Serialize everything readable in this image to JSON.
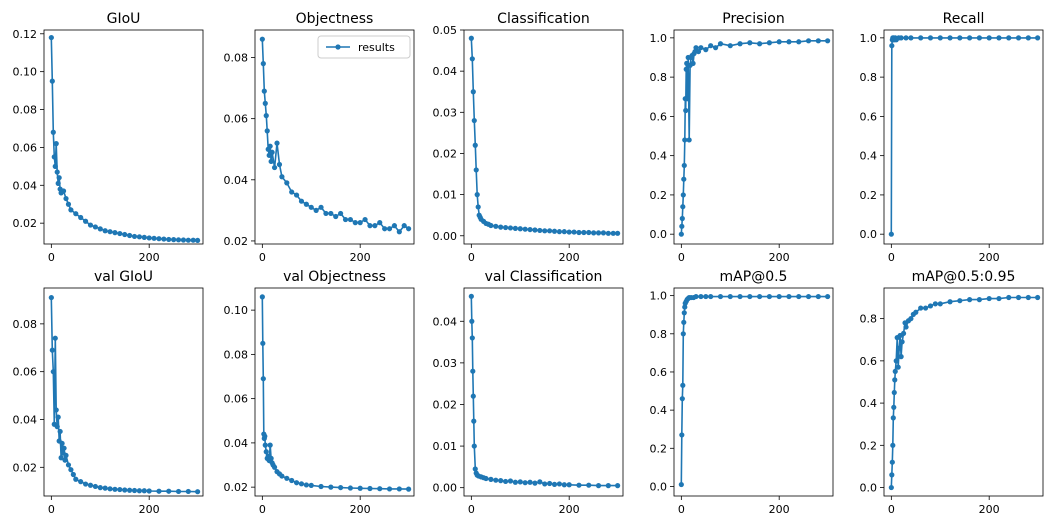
{
  "series_color": "#1f77b4",
  "legend": {
    "label": "results",
    "location": "upper right",
    "panel": 1
  },
  "chart_data": [
    {
      "type": "line",
      "title": "GIoU",
      "xlim": [
        -15,
        310
      ],
      "ylim": [
        0.009,
        0.122
      ],
      "xticks": [
        0,
        200
      ],
      "xtick_labels": [
        "0",
        "200"
      ],
      "yticks": [
        0.02,
        0.04,
        0.06,
        0.08,
        0.1,
        0.12
      ],
      "ytick_labels": [
        "0.02",
        "0.04",
        "0.06",
        "0.08",
        "0.10",
        "0.12"
      ],
      "x": [
        0,
        2,
        4,
        6,
        8,
        10,
        12,
        14,
        16,
        18,
        20,
        25,
        30,
        35,
        40,
        50,
        60,
        70,
        80,
        90,
        100,
        110,
        120,
        130,
        140,
        150,
        160,
        170,
        180,
        190,
        200,
        210,
        220,
        230,
        240,
        250,
        260,
        270,
        280,
        290,
        299
      ],
      "y": [
        0.118,
        0.095,
        0.068,
        0.055,
        0.05,
        0.062,
        0.047,
        0.041,
        0.044,
        0.038,
        0.036,
        0.037,
        0.033,
        0.03,
        0.027,
        0.025,
        0.023,
        0.021,
        0.019,
        0.018,
        0.017,
        0.016,
        0.0155,
        0.015,
        0.0145,
        0.014,
        0.0135,
        0.013,
        0.0128,
        0.0125,
        0.0122,
        0.012,
        0.0118,
        0.0116,
        0.0114,
        0.0113,
        0.0112,
        0.0111,
        0.011,
        0.011,
        0.0109
      ]
    },
    {
      "type": "line",
      "title": "Objectness",
      "xlim": [
        -15,
        310
      ],
      "ylim": [
        0.019,
        0.089
      ],
      "xticks": [
        0,
        200
      ],
      "xtick_labels": [
        "0",
        "200"
      ],
      "yticks": [
        0.02,
        0.04,
        0.06,
        0.08
      ],
      "ytick_labels": [
        "0.02",
        "0.04",
        "0.06",
        "0.08"
      ],
      "x": [
        0,
        2,
        4,
        6,
        8,
        10,
        12,
        14,
        16,
        18,
        20,
        25,
        30,
        35,
        40,
        50,
        60,
        70,
        80,
        90,
        100,
        110,
        120,
        130,
        140,
        150,
        160,
        170,
        180,
        190,
        200,
        210,
        220,
        230,
        240,
        250,
        260,
        270,
        280,
        290,
        299
      ],
      "y": [
        0.086,
        0.078,
        0.069,
        0.065,
        0.061,
        0.056,
        0.05,
        0.048,
        0.051,
        0.046,
        0.049,
        0.044,
        0.052,
        0.045,
        0.041,
        0.039,
        0.036,
        0.035,
        0.033,
        0.032,
        0.031,
        0.03,
        0.031,
        0.029,
        0.029,
        0.028,
        0.029,
        0.027,
        0.027,
        0.026,
        0.026,
        0.027,
        0.025,
        0.025,
        0.026,
        0.024,
        0.024,
        0.025,
        0.023,
        0.025,
        0.024
      ]
    },
    {
      "type": "line",
      "title": "Classification",
      "xlim": [
        -15,
        310
      ],
      "ylim": [
        -0.002,
        0.05
      ],
      "xticks": [
        0,
        200
      ],
      "xtick_labels": [
        "0",
        "200"
      ],
      "yticks": [
        0.0,
        0.01,
        0.02,
        0.03,
        0.04,
        0.05
      ],
      "ytick_labels": [
        "0.00",
        "0.01",
        "0.02",
        "0.03",
        "0.04",
        "0.05"
      ],
      "x": [
        0,
        2,
        4,
        6,
        8,
        10,
        12,
        14,
        16,
        18,
        20,
        25,
        30,
        35,
        40,
        50,
        60,
        70,
        80,
        90,
        100,
        110,
        120,
        130,
        140,
        150,
        160,
        170,
        180,
        190,
        200,
        210,
        220,
        230,
        240,
        250,
        260,
        270,
        280,
        290,
        299
      ],
      "y": [
        0.048,
        0.043,
        0.035,
        0.028,
        0.022,
        0.016,
        0.01,
        0.007,
        0.005,
        0.0045,
        0.004,
        0.0035,
        0.003,
        0.0028,
        0.0025,
        0.0023,
        0.0021,
        0.002,
        0.0019,
        0.0018,
        0.0017,
        0.0016,
        0.0015,
        0.0014,
        0.0013,
        0.0012,
        0.0012,
        0.0011,
        0.001,
        0.001,
        0.0009,
        0.0009,
        0.0008,
        0.0008,
        0.0008,
        0.0007,
        0.0007,
        0.0007,
        0.0006,
        0.0006,
        0.0006
      ]
    },
    {
      "type": "line",
      "title": "Precision",
      "xlim": [
        -15,
        310
      ],
      "ylim": [
        -0.05,
        1.04
      ],
      "xticks": [
        0,
        200
      ],
      "xtick_labels": [
        "0",
        "200"
      ],
      "yticks": [
        0.0,
        0.2,
        0.4,
        0.6,
        0.8,
        1.0
      ],
      "ytick_labels": [
        "0.0",
        "0.2",
        "0.4",
        "0.6",
        "0.8",
        "1.0"
      ],
      "x": [
        0,
        1,
        2,
        3,
        4,
        5,
        6,
        7,
        8,
        9,
        10,
        11,
        12,
        14,
        16,
        18,
        20,
        22,
        24,
        26,
        28,
        30,
        35,
        40,
        50,
        60,
        70,
        80,
        100,
        120,
        140,
        160,
        180,
        200,
        220,
        240,
        260,
        280,
        299
      ],
      "y": [
        0.0,
        0.04,
        0.08,
        0.14,
        0.2,
        0.28,
        0.35,
        0.48,
        0.69,
        0.63,
        0.84,
        0.87,
        0.69,
        0.9,
        0.48,
        0.86,
        0.9,
        0.91,
        0.87,
        0.92,
        0.93,
        0.95,
        0.93,
        0.95,
        0.94,
        0.96,
        0.95,
        0.97,
        0.96,
        0.97,
        0.975,
        0.97,
        0.975,
        0.98,
        0.98,
        0.98,
        0.985,
        0.985,
        0.985
      ]
    },
    {
      "type": "line",
      "title": "Recall",
      "xlim": [
        -15,
        310
      ],
      "ylim": [
        -0.05,
        1.04
      ],
      "xticks": [
        0,
        200
      ],
      "xtick_labels": [
        "0",
        "200"
      ],
      "yticks": [
        0.0,
        0.2,
        0.4,
        0.6,
        0.8,
        1.0
      ],
      "ytick_labels": [
        "0.0",
        "0.2",
        "0.4",
        "0.6",
        "0.8",
        "1.0"
      ],
      "x": [
        0,
        1,
        2,
        3,
        4,
        5,
        6,
        8,
        10,
        15,
        20,
        30,
        40,
        60,
        80,
        100,
        120,
        140,
        160,
        180,
        200,
        220,
        240,
        260,
        280,
        299
      ],
      "y": [
        0.0,
        0.96,
        0.99,
        1.0,
        0.99,
        1.0,
        0.99,
        1.0,
        0.99,
        1.0,
        1.0,
        1.0,
        1.0,
        1.0,
        1.0,
        1.0,
        1.0,
        1.0,
        1.0,
        1.0,
        1.0,
        1.0,
        1.0,
        1.0,
        1.0,
        1.0
      ]
    },
    {
      "type": "line",
      "title": "val GIoU",
      "xlim": [
        -15,
        310
      ],
      "ylim": [
        0.008,
        0.095
      ],
      "xticks": [
        0,
        200
      ],
      "xtick_labels": [
        "0",
        "200"
      ],
      "yticks": [
        0.02,
        0.04,
        0.06,
        0.08
      ],
      "ytick_labels": [
        "0.02",
        "0.04",
        "0.06",
        "0.08"
      ],
      "x": [
        0,
        2,
        4,
        6,
        8,
        10,
        12,
        14,
        16,
        18,
        20,
        22,
        24,
        26,
        28,
        30,
        35,
        40,
        45,
        50,
        60,
        70,
        80,
        90,
        100,
        110,
        120,
        130,
        140,
        150,
        160,
        170,
        180,
        190,
        200,
        220,
        240,
        260,
        280,
        299
      ],
      "y": [
        0.091,
        0.069,
        0.06,
        0.038,
        0.074,
        0.044,
        0.037,
        0.041,
        0.031,
        0.035,
        0.024,
        0.03,
        0.026,
        0.028,
        0.023,
        0.025,
        0.021,
        0.019,
        0.017,
        0.015,
        0.014,
        0.013,
        0.0125,
        0.012,
        0.0115,
        0.0113,
        0.011,
        0.0108,
        0.0107,
        0.0105,
        0.0104,
        0.0103,
        0.0102,
        0.0102,
        0.0101,
        0.01,
        0.01,
        0.0099,
        0.0099,
        0.0098
      ]
    },
    {
      "type": "line",
      "title": "val Objectness",
      "xlim": [
        -15,
        310
      ],
      "ylim": [
        0.016,
        0.11
      ],
      "xticks": [
        0,
        200
      ],
      "xtick_labels": [
        "0",
        "200"
      ],
      "yticks": [
        0.02,
        0.04,
        0.06,
        0.08,
        0.1
      ],
      "ytick_labels": [
        "0.02",
        "0.04",
        "0.06",
        "0.08",
        "0.10"
      ],
      "x": [
        0,
        1,
        2,
        3,
        4,
        5,
        6,
        8,
        10,
        12,
        14,
        16,
        18,
        20,
        22,
        25,
        30,
        35,
        40,
        50,
        60,
        70,
        80,
        90,
        100,
        120,
        140,
        160,
        180,
        200,
        220,
        240,
        260,
        280,
        299
      ],
      "y": [
        0.106,
        0.085,
        0.069,
        0.044,
        0.042,
        0.043,
        0.039,
        0.036,
        0.033,
        0.034,
        0.032,
        0.039,
        0.033,
        0.031,
        0.03,
        0.029,
        0.027,
        0.026,
        0.025,
        0.024,
        0.023,
        0.022,
        0.0215,
        0.021,
        0.0208,
        0.0203,
        0.02,
        0.0198,
        0.0196,
        0.0195,
        0.0194,
        0.0193,
        0.0192,
        0.0192,
        0.0191
      ]
    },
    {
      "type": "line",
      "title": "val Classification",
      "xlim": [
        -15,
        310
      ],
      "ylim": [
        -0.002,
        0.048
      ],
      "xticks": [
        0,
        200
      ],
      "xtick_labels": [
        "0",
        "200"
      ],
      "yticks": [
        0.0,
        0.01,
        0.02,
        0.03,
        0.04
      ],
      "ytick_labels": [
        "0.00",
        "0.01",
        "0.02",
        "0.03",
        "0.04"
      ],
      "x": [
        0,
        1,
        2,
        3,
        4,
        5,
        6,
        8,
        10,
        12,
        15,
        20,
        25,
        30,
        40,
        50,
        60,
        70,
        80,
        90,
        100,
        110,
        120,
        130,
        140,
        150,
        160,
        170,
        180,
        190,
        200,
        220,
        240,
        260,
        280,
        299
      ],
      "y": [
        0.046,
        0.04,
        0.036,
        0.028,
        0.022,
        0.016,
        0.01,
        0.0045,
        0.0035,
        0.003,
        0.0028,
        0.0026,
        0.0024,
        0.0022,
        0.002,
        0.0018,
        0.0017,
        0.0015,
        0.0016,
        0.0013,
        0.0014,
        0.0012,
        0.0013,
        0.0011,
        0.0014,
        0.0009,
        0.001,
        0.0008,
        0.0009,
        0.0007,
        0.0007,
        0.0006,
        0.0006,
        0.0005,
        0.0005,
        0.0005
      ]
    },
    {
      "type": "line",
      "title": "mAP@0.5",
      "xlim": [
        -15,
        310
      ],
      "ylim": [
        -0.05,
        1.04
      ],
      "xticks": [
        0,
        200
      ],
      "xtick_labels": [
        "0",
        "200"
      ],
      "yticks": [
        0.0,
        0.2,
        0.4,
        0.6,
        0.8,
        1.0
      ],
      "ytick_labels": [
        "0.0",
        "0.2",
        "0.4",
        "0.6",
        "0.8",
        "1.0"
      ],
      "x": [
        0,
        1,
        2,
        3,
        4,
        5,
        6,
        7,
        8,
        10,
        12,
        14,
        16,
        20,
        25,
        30,
        40,
        50,
        60,
        80,
        100,
        120,
        140,
        160,
        180,
        200,
        220,
        240,
        260,
        280,
        299
      ],
      "y": [
        0.01,
        0.27,
        0.46,
        0.53,
        0.8,
        0.86,
        0.91,
        0.94,
        0.96,
        0.97,
        0.98,
        0.985,
        0.99,
        0.99,
        0.99,
        0.995,
        0.995,
        0.995,
        0.995,
        0.995,
        0.995,
        0.995,
        0.995,
        0.995,
        0.995,
        0.995,
        0.995,
        0.995,
        0.995,
        0.995,
        0.995
      ]
    },
    {
      "type": "line",
      "title": "mAP@0.5:0.95",
      "xlim": [
        -15,
        310
      ],
      "ylim": [
        -0.04,
        0.945
      ],
      "xticks": [
        0,
        200
      ],
      "xtick_labels": [
        "0",
        "200"
      ],
      "yticks": [
        0.0,
        0.2,
        0.4,
        0.6,
        0.8
      ],
      "ytick_labels": [
        "0.0",
        "0.2",
        "0.4",
        "0.6",
        "0.8"
      ],
      "x": [
        0,
        1,
        2,
        3,
        4,
        5,
        6,
        7,
        8,
        10,
        12,
        14,
        16,
        18,
        20,
        22,
        25,
        28,
        30,
        35,
        40,
        45,
        50,
        60,
        70,
        80,
        90,
        100,
        120,
        140,
        160,
        180,
        200,
        220,
        240,
        260,
        280,
        299
      ],
      "y": [
        0.0,
        0.06,
        0.12,
        0.2,
        0.33,
        0.38,
        0.45,
        0.51,
        0.55,
        0.6,
        0.71,
        0.57,
        0.66,
        0.72,
        0.62,
        0.69,
        0.73,
        0.78,
        0.76,
        0.79,
        0.8,
        0.82,
        0.83,
        0.85,
        0.85,
        0.86,
        0.87,
        0.87,
        0.88,
        0.885,
        0.89,
        0.89,
        0.895,
        0.895,
        0.9,
        0.9,
        0.9,
        0.9
      ]
    }
  ]
}
